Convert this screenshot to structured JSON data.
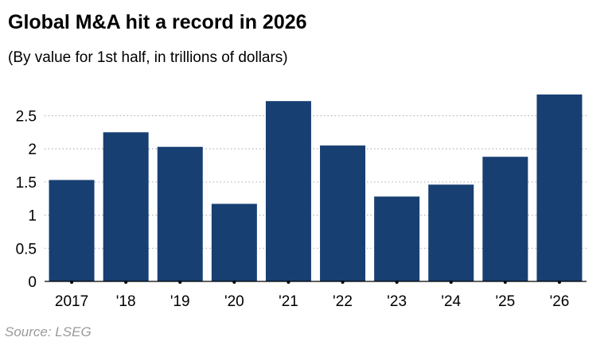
{
  "title": "Global M&A hit a record in 2026",
  "subtitle": "(By value for 1st half, in trillions of dollars)",
  "source": "Source: LSEG",
  "colors": {
    "bar": "#173f72",
    "grid": "#b5b5b5",
    "axis": "#000000"
  },
  "chart_data": {
    "type": "bar",
    "categories": [
      "2017",
      "'18",
      "'19",
      "'20",
      "'21",
      "'22",
      "'23",
      "'24",
      "'25",
      "'26"
    ],
    "values": [
      1.53,
      2.25,
      2.03,
      1.17,
      2.72,
      2.05,
      1.28,
      1.46,
      1.88,
      2.82
    ],
    "yticks": [
      0,
      0.5,
      1,
      1.5,
      2,
      2.5
    ],
    "ytick_labels": [
      "0",
      "0.5",
      "1",
      "1.5",
      "2",
      "2.5"
    ],
    "ylim": [
      0,
      2.95
    ],
    "grid": true,
    "grid_style": "dotted"
  }
}
